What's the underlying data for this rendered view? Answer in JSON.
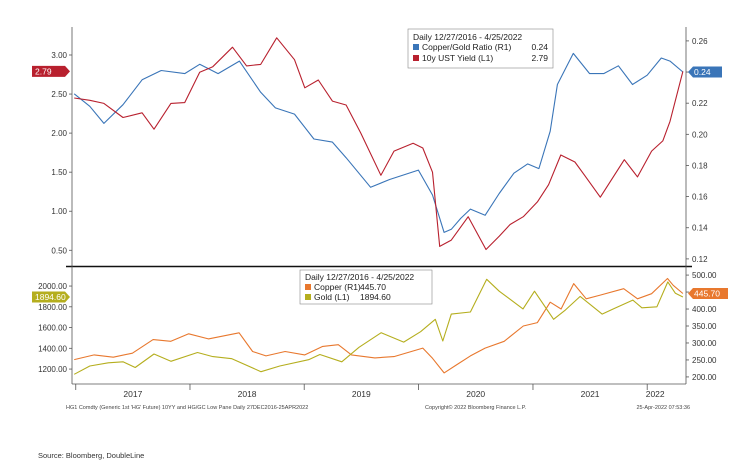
{
  "chart_data": [
    {
      "type": "line",
      "legend": {
        "header": "Daily 12/27/2016 - 4/25/2022",
        "placement": "top-right"
      },
      "series": [
        {
          "name": "Copper/Gold Ratio (R1)",
          "legend_value": "0.24",
          "axis": "right",
          "color": "#3a75b8",
          "x": [
            "2016-12-27",
            "2017-02-15",
            "2017-04-01",
            "2017-06-01",
            "2017-08-01",
            "2017-10-01",
            "2017-12-15",
            "2018-02-01",
            "2018-04-01",
            "2018-06-08",
            "2018-08-15",
            "2018-10-01",
            "2018-12-01",
            "2019-02-01",
            "2019-04-01",
            "2019-05-15",
            "2019-08-01",
            "2019-10-01",
            "2020-01-01",
            "2020-02-15",
            "2020-03-23",
            "2020-04-15",
            "2020-05-15",
            "2020-06-15",
            "2020-08-01",
            "2020-09-15",
            "2020-11-01",
            "2020-12-15",
            "2021-01-20",
            "2021-02-25",
            "2021-03-20",
            "2021-05-10",
            "2021-07-01",
            "2021-08-15",
            "2021-10-01",
            "2021-11-15",
            "2022-01-01",
            "2022-02-15",
            "2022-03-15",
            "2022-04-25"
          ],
          "y": [
            0.226,
            0.218,
            0.207,
            0.219,
            0.235,
            0.241,
            0.239,
            0.245,
            0.239,
            0.247,
            0.227,
            0.217,
            0.213,
            0.197,
            0.195,
            0.185,
            0.166,
            0.171,
            0.177,
            0.161,
            0.137,
            0.139,
            0.146,
            0.152,
            0.148,
            0.162,
            0.175,
            0.181,
            0.178,
            0.202,
            0.232,
            0.252,
            0.239,
            0.239,
            0.244,
            0.232,
            0.238,
            0.249,
            0.247,
            0.24
          ]
        },
        {
          "name": "10y UST Yield (L1)",
          "legend_value": "2.79",
          "axis": "left",
          "color": "#b8202e",
          "x": [
            "2016-12-27",
            "2017-02-15",
            "2017-04-01",
            "2017-06-01",
            "2017-08-01",
            "2017-09-08",
            "2017-11-01",
            "2017-12-15",
            "2018-02-01",
            "2018-03-15",
            "2018-05-17",
            "2018-07-01",
            "2018-08-15",
            "2018-10-05",
            "2018-12-01",
            "2019-01-03",
            "2019-02-15",
            "2019-04-01",
            "2019-05-15",
            "2019-07-01",
            "2019-09-03",
            "2019-10-15",
            "2019-12-15",
            "2020-01-15",
            "2020-02-15",
            "2020-03-09",
            "2020-04-15",
            "2020-06-08",
            "2020-08-04",
            "2020-09-15",
            "2020-10-20",
            "2020-12-01",
            "2021-01-15",
            "2021-02-20",
            "2021-03-31",
            "2021-05-15",
            "2021-06-15",
            "2021-08-04",
            "2021-10-20",
            "2021-12-01",
            "2022-01-15",
            "2022-02-20",
            "2022-03-15",
            "2022-04-25"
          ],
          "y": [
            2.45,
            2.42,
            2.38,
            2.2,
            2.26,
            2.05,
            2.38,
            2.39,
            2.78,
            2.85,
            3.1,
            2.86,
            2.88,
            3.22,
            2.94,
            2.58,
            2.68,
            2.41,
            2.36,
            2.0,
            1.46,
            1.77,
            1.87,
            1.81,
            1.5,
            0.55,
            0.63,
            0.93,
            0.51,
            0.68,
            0.83,
            0.93,
            1.12,
            1.34,
            1.72,
            1.63,
            1.46,
            1.18,
            1.66,
            1.44,
            1.77,
            1.9,
            2.15,
            2.79
          ]
        }
      ],
      "y_left": {
        "ticks": [
          0.5,
          1.0,
          1.5,
          2.0,
          2.5,
          3.0
        ],
        "tick_labels": [
          "0.50",
          "1.00",
          "1.50",
          "2.00",
          "2.50",
          "3.00"
        ],
        "range": [
          0.35,
          3.32
        ]
      },
      "y_right": {
        "ticks": [
          0.12,
          0.14,
          0.16,
          0.18,
          0.2,
          0.22,
          0.24,
          0.26
        ],
        "tick_labels": [
          "0.12",
          "0.14",
          "0.16",
          "0.18",
          "0.20",
          "0.22",
          "0.24",
          "0.26"
        ],
        "range": [
          0.118,
          0.267
        ]
      },
      "last_value_tags": [
        {
          "side": "left",
          "label": "2.79",
          "value": 2.79,
          "color": "#b8202e"
        },
        {
          "side": "right",
          "label": "0.24",
          "value": 0.24,
          "color": "#3a75b8"
        }
      ],
      "grid": false
    },
    {
      "type": "line",
      "legend": {
        "header": "Daily 12/27/2016 - 4/25/2022",
        "placement": "top-right"
      },
      "series": [
        {
          "name": "Copper (R1)",
          "legend_value": "445.70",
          "axis": "right",
          "color": "#e8782e",
          "x": [
            "2016-12-27",
            "2017-03-01",
            "2017-05-01",
            "2017-07-01",
            "2017-09-05",
            "2017-11-01",
            "2017-12-28",
            "2018-03-01",
            "2018-06-07",
            "2018-07-20",
            "2018-09-01",
            "2018-11-01",
            "2019-01-03",
            "2019-03-01",
            "2019-04-20",
            "2019-06-01",
            "2019-08-15",
            "2019-10-15",
            "2020-01-15",
            "2020-02-15",
            "2020-03-23",
            "2020-05-01",
            "2020-06-15",
            "2020-08-01",
            "2020-10-01",
            "2020-12-01",
            "2021-01-15",
            "2021-02-25",
            "2021-04-01",
            "2021-05-11",
            "2021-06-20",
            "2021-08-01",
            "2021-10-18",
            "2021-12-01",
            "2022-01-15",
            "2022-03-07",
            "2022-03-25",
            "2022-04-25"
          ],
          "y": [
            251,
            265,
            258,
            270,
            310,
            305,
            327,
            312,
            330,
            275,
            262,
            275,
            265,
            290,
            295,
            265,
            256,
            260,
            285,
            255,
            212,
            235,
            262,
            285,
            305,
            350,
            360,
            420,
            400,
            475,
            430,
            440,
            460,
            430,
            445,
            490,
            470,
            445.7
          ]
        },
        {
          "name": "Gold (L1)",
          "legend_value": "1894.60",
          "axis": "left",
          "color": "#b5ae1e",
          "x": [
            "2016-12-27",
            "2017-02-15",
            "2017-04-15",
            "2017-06-01",
            "2017-07-10",
            "2017-09-08",
            "2017-11-01",
            "2018-01-25",
            "2018-03-15",
            "2018-05-15",
            "2018-08-16",
            "2018-10-15",
            "2019-01-15",
            "2019-02-20",
            "2019-05-01",
            "2019-06-25",
            "2019-09-04",
            "2019-11-15",
            "2020-01-08",
            "2020-02-24",
            "2020-03-19",
            "2020-04-15",
            "2020-06-15",
            "2020-08-06",
            "2020-09-15",
            "2020-11-30",
            "2021-01-06",
            "2021-03-08",
            "2021-04-15",
            "2021-06-01",
            "2021-08-10",
            "2021-09-15",
            "2021-11-16",
            "2021-12-15",
            "2022-02-01",
            "2022-03-08",
            "2022-04-01",
            "2022-04-25"
          ],
          "y": [
            1150,
            1230,
            1260,
            1270,
            1215,
            1345,
            1275,
            1360,
            1320,
            1300,
            1175,
            1230,
            1290,
            1340,
            1270,
            1410,
            1550,
            1460,
            1560,
            1680,
            1470,
            1730,
            1750,
            2065,
            1950,
            1780,
            1950,
            1680,
            1770,
            1900,
            1730,
            1780,
            1865,
            1790,
            1800,
            2040,
            1930,
            1894.6
          ]
        }
      ],
      "y_left": {
        "ticks": [
          1200,
          1400,
          1600,
          1800,
          2000
        ],
        "tick_labels": [
          "1200.00",
          "1400.00",
          "1600.00",
          "1800.00",
          "2000.00"
        ],
        "range": [
          1085,
          2145
        ]
      },
      "y_right": {
        "ticks": [
          200,
          250,
          300,
          350,
          400,
          450,
          500
        ],
        "tick_labels": [
          "200.00",
          "250.00",
          "300.00",
          "350.00",
          "400.00",
          "450.00",
          "500.00"
        ],
        "range": [
          188,
          512
        ]
      },
      "last_value_tags": [
        {
          "side": "left",
          "label": "1894.60",
          "value": 1894.6,
          "color": "#b5ae1e"
        },
        {
          "side": "right",
          "label": "445.70",
          "value": 445.7,
          "color": "#e8782e"
        }
      ],
      "grid": false
    }
  ],
  "x_axis": {
    "year_labels": [
      "2017",
      "2018",
      "2019",
      "2020",
      "2021",
      "2022"
    ]
  },
  "footer": {
    "left": "HG1 Comdty (Generic 1st 'HG' Future) 10YY and HG/GC Low Pane  Daily 27DEC2016-25APR2022",
    "center": "Copyright© 2022 Bloomberg Finance L.P.",
    "right": "25-Apr-2022 07:53:36"
  },
  "source": "Source: Bloomberg, DoubleLine"
}
